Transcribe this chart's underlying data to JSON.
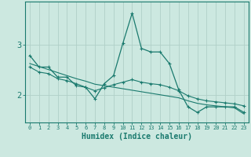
{
  "xlabel": "Humidex (Indice chaleur)",
  "bg_color": "#cce8e0",
  "line_color": "#1a7a6e",
  "grid_color": "#b0d0c8",
  "x_values": [
    0,
    1,
    2,
    3,
    4,
    5,
    6,
    7,
    8,
    9,
    10,
    11,
    12,
    13,
    14,
    15,
    16,
    17,
    18,
    19,
    20,
    21,
    22,
    23
  ],
  "y_main": [
    2.78,
    2.55,
    2.55,
    2.35,
    2.35,
    2.18,
    2.15,
    1.92,
    2.22,
    2.38,
    3.02,
    3.62,
    2.92,
    2.85,
    2.85,
    2.62,
    2.1,
    1.76,
    1.65,
    1.76,
    1.76,
    1.76,
    1.76,
    1.65
  ],
  "y_flat": [
    2.55,
    2.45,
    2.42,
    2.32,
    2.28,
    2.22,
    2.15,
    2.08,
    2.14,
    2.2,
    2.25,
    2.3,
    2.25,
    2.22,
    2.2,
    2.15,
    2.08,
    1.98,
    1.92,
    1.88,
    1.86,
    1.84,
    1.82,
    1.78
  ],
  "y_trend": [
    2.62,
    2.56,
    2.5,
    2.44,
    2.38,
    2.32,
    2.27,
    2.21,
    2.18,
    2.15,
    2.12,
    2.09,
    2.06,
    2.03,
    2.0,
    1.97,
    1.94,
    1.88,
    1.83,
    1.8,
    1.78,
    1.76,
    1.74,
    1.62
  ],
  "ylim": [
    1.45,
    3.85
  ],
  "yticks": [
    2,
    3
  ],
  "xtick_labels": [
    "0",
    "1",
    "2",
    "3",
    "4",
    "5",
    "6",
    "7",
    "8",
    "9",
    "10",
    "11",
    "12",
    "13",
    "14",
    "15",
    "16",
    "17",
    "18",
    "19",
    "20",
    "21",
    "22",
    "23"
  ]
}
